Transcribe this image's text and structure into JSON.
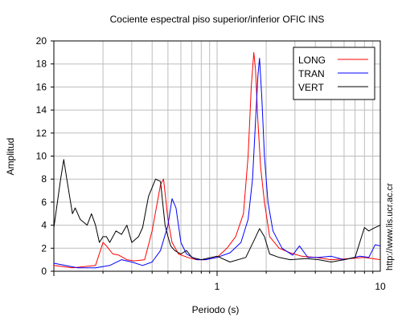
{
  "chart_data": {
    "type": "line",
    "title": "Cociente espectral piso superior/inferior  OFIC INS",
    "xlabel": "Periodo (s)",
    "ylabel": "Amplitud",
    "x_scale": "log",
    "xlim": [
      0.1,
      10
    ],
    "ylim": [
      0,
      20
    ],
    "x_tick_labels": [
      {
        "value": 1,
        "label": "1"
      },
      {
        "value": 10,
        "label": "10"
      }
    ],
    "y_ticks": [
      0,
      2,
      4,
      6,
      8,
      10,
      12,
      14,
      16,
      18,
      20
    ],
    "grid": true,
    "legend_position": "top-right",
    "watermark": "http://www.lis.ucr.ac.cr",
    "series": [
      {
        "name": "LONG",
        "color": "#ff0000",
        "x": [
          0.1,
          0.13,
          0.18,
          0.2,
          0.21,
          0.23,
          0.25,
          0.28,
          0.31,
          0.36,
          0.4,
          0.45,
          0.47,
          0.5,
          0.53,
          0.58,
          0.66,
          0.75,
          0.85,
          1.0,
          1.15,
          1.3,
          1.45,
          1.55,
          1.62,
          1.68,
          1.72,
          1.78,
          1.85,
          1.95,
          2.1,
          2.4,
          2.8,
          3.3,
          4.0,
          5.0,
          6.5,
          8.0,
          10.0
        ],
        "y": [
          0.5,
          0.3,
          0.5,
          2.5,
          2.2,
          1.5,
          1.4,
          1.0,
          0.9,
          1.0,
          3.5,
          7.5,
          8.0,
          4.5,
          2.5,
          1.5,
          1.2,
          1.0,
          1.0,
          1.2,
          2.0,
          3.0,
          5.0,
          10.0,
          16.0,
          19.0,
          17.5,
          13.0,
          9.0,
          6.0,
          3.0,
          2.0,
          1.6,
          1.3,
          1.2,
          1.0,
          1.1,
          1.2,
          1.0
        ]
      },
      {
        "name": "TRAN",
        "color": "#0000ff",
        "x": [
          0.1,
          0.14,
          0.18,
          0.22,
          0.26,
          0.3,
          0.35,
          0.4,
          0.45,
          0.5,
          0.53,
          0.56,
          0.6,
          0.65,
          0.75,
          0.85,
          1.0,
          1.2,
          1.4,
          1.55,
          1.65,
          1.72,
          1.78,
          1.82,
          1.88,
          1.95,
          2.05,
          2.2,
          2.5,
          2.9,
          3.2,
          3.6,
          4.2,
          5.0,
          6.0,
          7.5,
          8.5,
          9.3,
          10.0
        ],
        "y": [
          0.7,
          0.3,
          0.3,
          0.5,
          1.0,
          0.8,
          0.5,
          0.8,
          1.8,
          4.0,
          6.3,
          5.5,
          2.5,
          1.5,
          1.0,
          1.0,
          1.2,
          1.6,
          2.5,
          4.5,
          8.0,
          13.0,
          17.0,
          18.5,
          15.0,
          10.0,
          6.0,
          3.5,
          2.0,
          1.4,
          2.2,
          1.2,
          1.2,
          1.3,
          1.0,
          1.3,
          1.2,
          2.3,
          2.2
        ]
      },
      {
        "name": "VERT",
        "color": "#000000",
        "x": [
          0.1,
          0.11,
          0.115,
          0.12,
          0.13,
          0.135,
          0.145,
          0.16,
          0.17,
          0.18,
          0.19,
          0.2,
          0.21,
          0.22,
          0.24,
          0.26,
          0.28,
          0.3,
          0.33,
          0.35,
          0.38,
          0.42,
          0.45,
          0.48,
          0.5,
          0.52,
          0.55,
          0.6,
          0.65,
          0.7,
          0.8,
          1.0,
          1.2,
          1.5,
          1.7,
          1.82,
          1.95,
          2.1,
          2.4,
          2.8,
          3.5,
          4.2,
          5.0,
          6.0,
          7.0,
          8.0,
          8.5,
          9.0,
          10.0
        ],
        "y": [
          3.8,
          8.0,
          9.7,
          8.0,
          5.0,
          5.5,
          4.5,
          4.0,
          5.0,
          4.0,
          2.5,
          3.0,
          3.0,
          2.5,
          3.5,
          3.2,
          4.0,
          2.5,
          3.0,
          3.8,
          6.5,
          8.0,
          7.8,
          4.0,
          3.0,
          2.2,
          1.8,
          1.5,
          1.8,
          1.2,
          1.0,
          1.3,
          0.8,
          1.2,
          2.8,
          3.7,
          3.0,
          1.5,
          1.2,
          1.0,
          1.1,
          1.0,
          0.8,
          1.0,
          1.2,
          3.8,
          3.5,
          3.7,
          4.0
        ]
      }
    ]
  }
}
